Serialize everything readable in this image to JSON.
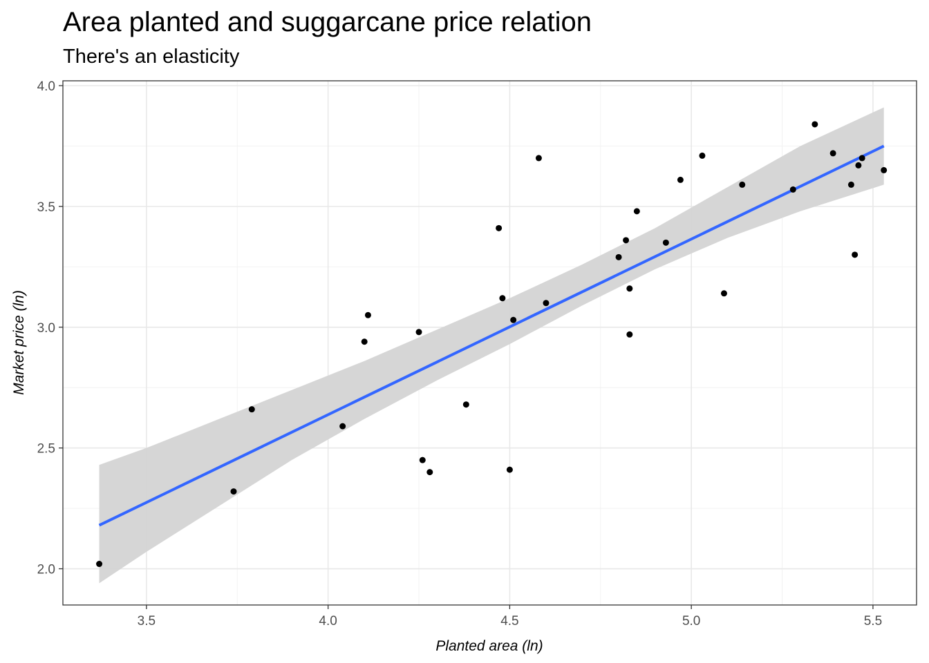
{
  "chart_data": {
    "type": "scatter",
    "title": "Area planted and suggarcane price relation",
    "subtitle": "There's an elasticity",
    "xlabel": "Planted area (ln)",
    "ylabel": "Market price (ln)",
    "xlim": [
      3.27,
      5.62
    ],
    "ylim": [
      1.85,
      4.02
    ],
    "xticks": [
      3.5,
      4.0,
      4.5,
      5.0,
      5.5
    ],
    "yticks": [
      2.0,
      2.5,
      3.0,
      3.5,
      4.0
    ],
    "xtick_labels": [
      "3.5",
      "4.0",
      "4.5",
      "5.0",
      "5.5"
    ],
    "ytick_labels": [
      "2.0",
      "2.5",
      "3.0",
      "3.5",
      "4.0"
    ],
    "grid": true,
    "points": [
      {
        "x": 3.37,
        "y": 2.02
      },
      {
        "x": 3.74,
        "y": 2.32
      },
      {
        "x": 3.79,
        "y": 2.66
      },
      {
        "x": 4.04,
        "y": 2.59
      },
      {
        "x": 4.1,
        "y": 2.94
      },
      {
        "x": 4.11,
        "y": 3.05
      },
      {
        "x": 4.25,
        "y": 2.98
      },
      {
        "x": 4.26,
        "y": 2.45
      },
      {
        "x": 4.28,
        "y": 2.4
      },
      {
        "x": 4.38,
        "y": 2.68
      },
      {
        "x": 4.47,
        "y": 3.41
      },
      {
        "x": 4.48,
        "y": 3.12
      },
      {
        "x": 4.5,
        "y": 2.41
      },
      {
        "x": 4.51,
        "y": 3.03
      },
      {
        "x": 4.58,
        "y": 3.7
      },
      {
        "x": 4.6,
        "y": 3.1
      },
      {
        "x": 4.8,
        "y": 3.29
      },
      {
        "x": 4.82,
        "y": 3.36
      },
      {
        "x": 4.83,
        "y": 3.16
      },
      {
        "x": 4.83,
        "y": 2.97
      },
      {
        "x": 4.85,
        "y": 3.48
      },
      {
        "x": 4.93,
        "y": 3.35
      },
      {
        "x": 4.97,
        "y": 3.61
      },
      {
        "x": 5.03,
        "y": 3.71
      },
      {
        "x": 5.09,
        "y": 3.14
      },
      {
        "x": 5.14,
        "y": 3.59
      },
      {
        "x": 5.28,
        "y": 3.57
      },
      {
        "x": 5.34,
        "y": 3.84
      },
      {
        "x": 5.39,
        "y": 3.72
      },
      {
        "x": 5.44,
        "y": 3.59
      },
      {
        "x": 5.45,
        "y": 3.3
      },
      {
        "x": 5.46,
        "y": 3.67
      },
      {
        "x": 5.47,
        "y": 3.7
      },
      {
        "x": 5.53,
        "y": 3.65
      }
    ],
    "fit_line": {
      "x": [
        3.37,
        5.53
      ],
      "y": [
        2.18,
        3.75
      ],
      "color": "#3366FF"
    },
    "confidence_band": {
      "x": [
        3.37,
        3.5,
        3.7,
        3.9,
        4.1,
        4.3,
        4.5,
        4.7,
        4.9,
        5.1,
        5.3,
        5.53
      ],
      "lower": [
        1.94,
        2.07,
        2.26,
        2.45,
        2.62,
        2.78,
        2.93,
        3.09,
        3.24,
        3.37,
        3.48,
        3.59
      ],
      "upper": [
        2.43,
        2.5,
        2.62,
        2.74,
        2.86,
        2.99,
        3.12,
        3.26,
        3.41,
        3.58,
        3.75,
        3.91
      ],
      "color": "#d4d4d4"
    },
    "point_color": "#000000"
  }
}
